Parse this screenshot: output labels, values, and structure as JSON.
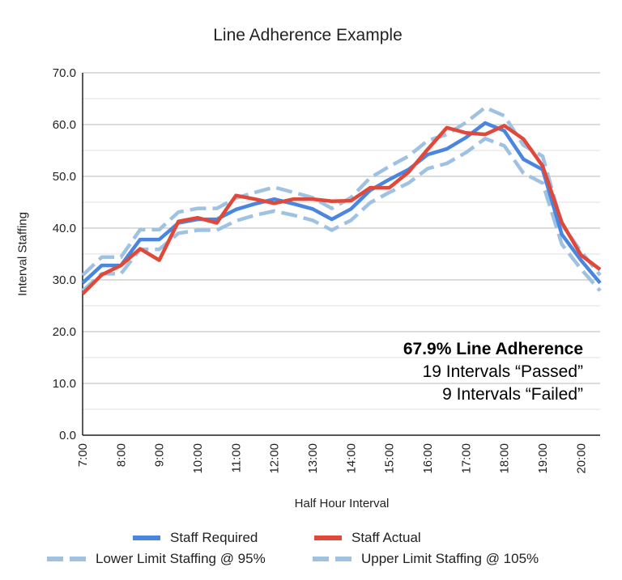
{
  "chart_data": {
    "type": "line",
    "title": "Line Adherence Example",
    "xlabel": "Half Hour Interval",
    "ylabel": "Interval Staffing",
    "ylim": [
      0,
      70
    ],
    "yticks": [
      "0.0",
      "10.0",
      "20.0",
      "30.0",
      "40.0",
      "50.0",
      "60.0",
      "70.0"
    ],
    "grid": true,
    "legend": "bottom",
    "x": [
      "7:00",
      "7:30",
      "8:00",
      "8:30",
      "9:00",
      "9:30",
      "10:00",
      "10:30",
      "11:00",
      "11:30",
      "12:00",
      "12:30",
      "13:00",
      "13:30",
      "14:00",
      "14:30",
      "15:00",
      "15:30",
      "16:00",
      "16:30",
      "17:00",
      "17:30",
      "18:00",
      "18:30",
      "19:00",
      "19:30",
      "20:00",
      "20:30"
    ],
    "xticks": [
      "7:00",
      "8:00",
      "9:00",
      "10:00",
      "11:00",
      "12:00",
      "13:00",
      "14:00",
      "15:00",
      "16:00",
      "17:00",
      "18:00",
      "19:00",
      "20:00"
    ],
    "series": [
      {
        "name": "Staff Required",
        "color": "#4a86e0",
        "style": "solid",
        "values": [
          29.4,
          32.8,
          32.8,
          37.8,
          37.8,
          41.0,
          41.7,
          41.7,
          43.6,
          44.7,
          45.6,
          44.7,
          43.7,
          41.7,
          43.7,
          47.3,
          49.4,
          51.3,
          54.2,
          55.3,
          57.5,
          60.3,
          58.8,
          53.3,
          51.3,
          38.8,
          33.8,
          29.4
        ]
      },
      {
        "name": "Staff Actual",
        "color": "#e0493a",
        "style": "solid",
        "values": [
          27.3,
          31.0,
          32.8,
          36.0,
          33.8,
          41.3,
          42.0,
          41.0,
          46.3,
          45.6,
          44.8,
          45.6,
          45.6,
          45.2,
          45.3,
          47.8,
          47.8,
          50.8,
          55.2,
          59.4,
          58.4,
          58.1,
          59.8,
          57.2,
          52.0,
          41.1,
          34.8,
          32.0
        ]
      },
      {
        "name": "Lower Limit Staffing @ 95%",
        "color": "#9fc2e2",
        "style": "dashed",
        "values": [
          27.9,
          31.2,
          31.2,
          35.9,
          35.9,
          39.0,
          39.6,
          39.6,
          41.4,
          42.5,
          43.3,
          42.5,
          41.5,
          39.6,
          41.5,
          44.9,
          46.9,
          48.7,
          51.5,
          52.5,
          54.6,
          57.3,
          55.9,
          50.6,
          48.7,
          36.9,
          32.1,
          27.9
        ]
      },
      {
        "name": "Upper Limit Staffing @ 105%",
        "color": "#9fc2e2",
        "style": "dashed",
        "values": [
          30.9,
          34.4,
          34.4,
          39.7,
          39.7,
          43.1,
          43.8,
          43.8,
          45.8,
          46.9,
          47.9,
          46.9,
          45.9,
          43.8,
          45.9,
          49.7,
          51.9,
          53.9,
          56.9,
          58.1,
          60.4,
          63.3,
          61.7,
          56.0,
          53.9,
          40.7,
          35.5,
          30.9
        ]
      }
    ],
    "annotations": [
      "67.9% Line Adherence",
      "19 Intervals “Passed”",
      "9 Intervals “Failed”"
    ]
  }
}
